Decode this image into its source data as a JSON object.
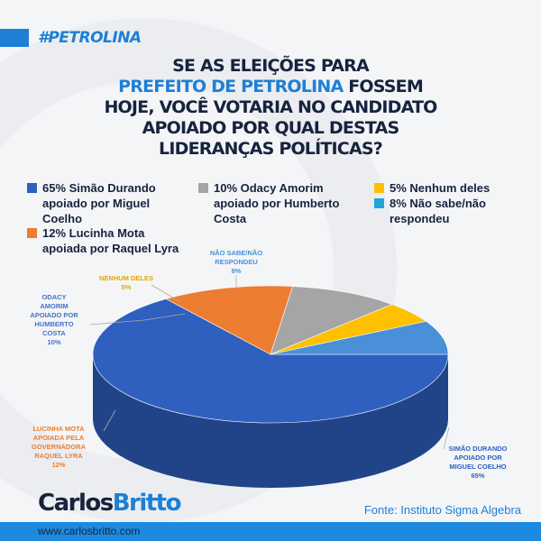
{
  "header": {
    "tag": "#PETROLINA",
    "title_line1": "SE AS ELEIÇÕES PARA",
    "title_hl": "PREFEITO DE PETROLINA",
    "title_line2_rest": " FOSSEM",
    "title_line3": "HOJE, VOCÊ VOTARIA NO CANDIDATO",
    "title_line4": "APOIADO POR QUAL DESTAS",
    "title_line5": "LIDERANÇAS POLÍTICAS?"
  },
  "chart_data": {
    "type": "pie",
    "legend_position": "top",
    "slices": [
      {
        "legend": "65% Simão Durando apoiado por Miguel Coelho",
        "label": [
          "SIMÃO DURANDO",
          "APOIADO POR",
          "MIGUEL COELHO",
          "65%"
        ],
        "value": 65,
        "color": "#2f5fbf"
      },
      {
        "legend": "12% Lucinha Mota apoiada por Raquel Lyra",
        "label": [
          "LUCINHA MOTA",
          "APOIADA PELA",
          "GOVERNADORA",
          "RAQUEL LYRA",
          "12%"
        ],
        "value": 12,
        "color": "#ed7d31"
      },
      {
        "legend": "10% Odacy Amorim apoiado por Humberto Costa",
        "label": [
          "ODACY",
          "AMORIM",
          "APOIADO POR",
          "HUMBERTO",
          "COSTA",
          "10%"
        ],
        "value": 10,
        "color": "#a5a5a5"
      },
      {
        "legend": "5% Nenhum deles",
        "label": [
          "NENHUM DELES",
          "5%"
        ],
        "value": 5,
        "color": "#ffc000"
      },
      {
        "legend": "8% Não sabe/não respondeu",
        "label": [
          "NÃO SABE/NÃO",
          "RESPONDEU",
          "8%"
        ],
        "value": 8,
        "color": "#4a90d9"
      }
    ]
  },
  "footer": {
    "logo_a": "Carlos",
    "logo_b": "Britto",
    "source": "Fonte: Instituto Sigma Algebra",
    "url": "www.carlosbritto.com"
  }
}
